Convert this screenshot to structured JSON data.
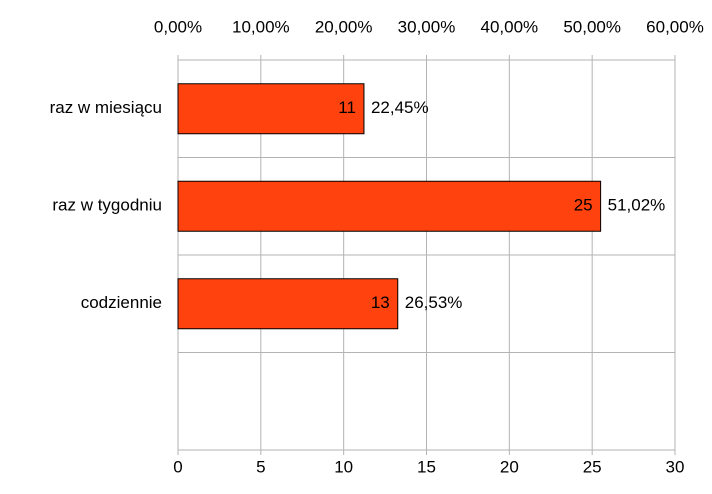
{
  "chart_data": {
    "type": "hbar",
    "categories": [
      "raz w miesiącu",
      "raz w tygodniu",
      "codziennie",
      null
    ],
    "values": [
      11,
      25,
      13,
      null
    ],
    "percent_values": [
      22.45,
      51.02,
      26.53,
      null
    ],
    "percent_labels": [
      "22,45%",
      "51,02%",
      "26,53%",
      null
    ],
    "color": "#ff420e",
    "xlim": [
      0,
      30
    ],
    "xticks": [
      0,
      5,
      10,
      15,
      20,
      25,
      30
    ],
    "x2lim": [
      0,
      60
    ],
    "x2ticks": [
      {
        "value": 0,
        "label": "0,00%"
      },
      {
        "value": 10,
        "label": "10,00%"
      },
      {
        "value": 20,
        "label": "20,00%"
      },
      {
        "value": 30,
        "label": "30,00%"
      },
      {
        "value": 40,
        "label": "40,00%"
      },
      {
        "value": 50,
        "label": "50,00%"
      },
      {
        "value": 60,
        "label": "60,00%"
      }
    ],
    "grid": true
  }
}
